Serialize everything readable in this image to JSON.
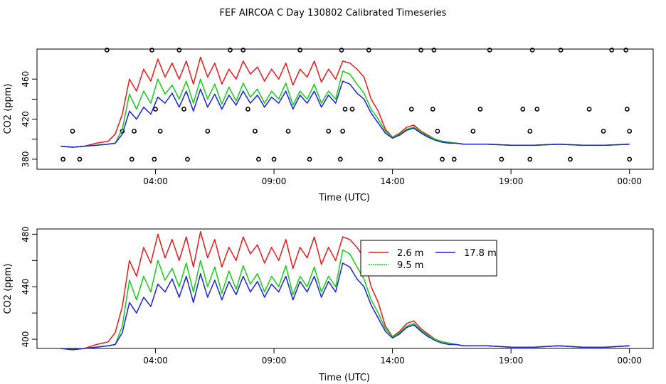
{
  "title": "FEF AIRCOA C  Day 130802  Calibrated Timeseries",
  "colors": {
    "red": "#e41a1c",
    "green": "#19c919",
    "blue": "#1b22d6",
    "circle": "#000000"
  },
  "chart_data": [
    {
      "type": "line",
      "panel": "top",
      "xlabel": "Time (UTC)",
      "ylabel": "CO2 (ppm)",
      "xlim": [
        -1.0,
        25.0
      ],
      "ylim": [
        370,
        490
      ],
      "xticks": [
        4,
        9,
        14,
        19,
        24
      ],
      "xtick_labels": [
        "04:00",
        "09:00",
        "14:00",
        "19:00",
        "00:00"
      ],
      "yticks": [
        380,
        420,
        460
      ],
      "yticks_minor": [
        400,
        440
      ],
      "ytick_labels": [
        "380",
        "420",
        "460"
      ],
      "series_ref": "series",
      "calibration_markers": {
        "x": [
          1.95,
          3.85,
          5.0,
          7.15,
          7.7,
          10.1,
          11.85,
          13.0,
          15.2,
          15.75,
          18.1,
          19.9,
          21.1,
          23.25,
          23.85,
          4.0,
          5.2,
          7.9,
          12.0,
          12.3,
          14.8,
          15.7,
          17.7,
          19.5,
          20.1,
          22.3,
          23.9,
          0.5,
          2.6,
          3.1,
          4.2,
          6.2,
          8.2,
          9.6,
          11.3,
          11.9,
          15.9,
          17.4,
          19.8,
          22.9,
          24.0,
          0.1,
          0.8,
          3.0,
          3.95,
          5.35,
          8.35,
          9.0,
          10.5,
          11.8,
          13.5,
          16.1,
          16.6,
          18.6,
          19.8,
          21.5,
          24.0
        ],
        "y": [
          489,
          489,
          489,
          489,
          489,
          489,
          489,
          489,
          489,
          489,
          489,
          489,
          489,
          489,
          489,
          430,
          430,
          430,
          430,
          430,
          430,
          430,
          430,
          430,
          430,
          430,
          430,
          408,
          408,
          408,
          408,
          408,
          408,
          408,
          408,
          408,
          408,
          408,
          408,
          408,
          408,
          380,
          380,
          380,
          380,
          380,
          380,
          380,
          380,
          380,
          380,
          380,
          380,
          380,
          380,
          380,
          380
        ]
      }
    },
    {
      "type": "line",
      "panel": "bottom",
      "xlabel": "Time (UTC)",
      "ylabel": "CO2 (ppm)",
      "xlim": [
        -1.0,
        25.0
      ],
      "ylim": [
        393,
        484
      ],
      "xticks": [
        4,
        9,
        14,
        19,
        24
      ],
      "xtick_labels": [
        "04:00",
        "09:00",
        "14:00",
        "19:00",
        "00:00"
      ],
      "yticks": [
        400,
        440,
        480
      ],
      "yticks_minor": [
        420,
        460
      ],
      "ytick_labels": [
        "400",
        "440",
        "480"
      ],
      "legend_position": "top-right",
      "legend_entries": [
        "2.6 m",
        "9.5 m",
        "17.8 m"
      ],
      "series_ref": "series"
    }
  ],
  "series": [
    {
      "name": "2.6 m",
      "color_key": "red",
      "x": [
        0.0,
        0.5,
        1.0,
        1.5,
        2.0,
        2.3,
        2.6,
        2.9,
        3.2,
        3.5,
        3.8,
        4.1,
        4.4,
        4.7,
        5.0,
        5.3,
        5.6,
        5.9,
        6.2,
        6.5,
        6.8,
        7.1,
        7.4,
        7.7,
        8.0,
        8.3,
        8.6,
        8.9,
        9.2,
        9.5,
        9.8,
        10.1,
        10.4,
        10.7,
        11.0,
        11.3,
        11.6,
        11.9,
        12.2,
        12.5,
        12.8,
        13.1,
        13.4,
        13.7,
        14.0,
        14.3,
        14.6,
        14.9,
        15.2,
        15.5,
        15.8,
        16.1,
        16.4,
        16.7,
        17.0,
        18.0,
        19.0,
        20.0,
        21.0,
        22.0,
        23.0,
        24.0
      ],
      "y": [
        393,
        392,
        393,
        396,
        398,
        405,
        425,
        460,
        448,
        470,
        458,
        480,
        462,
        476,
        460,
        478,
        455,
        482,
        462,
        476,
        455,
        470,
        460,
        478,
        465,
        472,
        458,
        470,
        460,
        476,
        454,
        470,
        462,
        478,
        457,
        470,
        460,
        478,
        476,
        470,
        462,
        440,
        428,
        410,
        402,
        406,
        412,
        414,
        408,
        404,
        400,
        398,
        397,
        396,
        395,
        395,
        394,
        394,
        395,
        394,
        394,
        395
      ]
    },
    {
      "name": "9.5 m",
      "color_key": "green",
      "x": [
        0.0,
        0.5,
        1.0,
        1.5,
        2.0,
        2.3,
        2.6,
        2.9,
        3.2,
        3.5,
        3.8,
        4.1,
        4.4,
        4.7,
        5.0,
        5.3,
        5.6,
        5.9,
        6.2,
        6.5,
        6.8,
        7.1,
        7.4,
        7.7,
        8.0,
        8.3,
        8.6,
        8.9,
        9.2,
        9.5,
        9.8,
        10.1,
        10.4,
        10.7,
        11.0,
        11.3,
        11.6,
        11.9,
        12.2,
        12.5,
        12.8,
        13.1,
        13.4,
        13.7,
        14.0,
        14.3,
        14.6,
        14.9,
        15.2,
        15.5,
        15.8,
        16.1,
        16.4,
        16.7,
        17.0,
        18.0,
        19.0,
        20.0,
        21.0,
        22.0,
        23.0,
        24.0
      ],
      "y": [
        393,
        392,
        393,
        394,
        395,
        396,
        410,
        445,
        430,
        448,
        436,
        460,
        445,
        454,
        440,
        458,
        436,
        460,
        440,
        455,
        435,
        452,
        438,
        456,
        442,
        450,
        436,
        448,
        440,
        456,
        434,
        448,
        440,
        455,
        436,
        448,
        440,
        468,
        465,
        455,
        446,
        430,
        420,
        408,
        402,
        405,
        410,
        412,
        407,
        403,
        400,
        398,
        397,
        396,
        395,
        395,
        394,
        394,
        395,
        394,
        394,
        395
      ]
    },
    {
      "name": "17.8 m",
      "color_key": "blue",
      "x": [
        0.0,
        0.5,
        1.0,
        1.5,
        2.0,
        2.3,
        2.6,
        2.9,
        3.2,
        3.5,
        3.8,
        4.1,
        4.4,
        4.7,
        5.0,
        5.3,
        5.6,
        5.9,
        6.2,
        6.5,
        6.8,
        7.1,
        7.4,
        7.7,
        8.0,
        8.3,
        8.6,
        8.9,
        9.2,
        9.5,
        9.8,
        10.1,
        10.4,
        10.7,
        11.0,
        11.3,
        11.6,
        11.9,
        12.2,
        12.5,
        12.8,
        13.1,
        13.4,
        13.7,
        14.0,
        14.3,
        14.6,
        14.9,
        15.2,
        15.5,
        15.8,
        16.1,
        16.4,
        16.7,
        17.0,
        18.0,
        19.0,
        20.0,
        21.0,
        22.0,
        23.0,
        24.0
      ],
      "y": [
        393,
        392,
        393,
        394,
        395,
        396,
        405,
        428,
        420,
        432,
        425,
        442,
        436,
        446,
        432,
        448,
        428,
        450,
        432,
        445,
        430,
        444,
        434,
        448,
        436,
        444,
        432,
        442,
        436,
        448,
        430,
        444,
        436,
        448,
        432,
        444,
        436,
        458,
        455,
        446,
        440,
        426,
        416,
        406,
        401,
        404,
        409,
        411,
        406,
        402,
        399,
        397,
        396,
        396,
        395,
        395,
        394,
        394,
        395,
        394,
        394,
        395
      ]
    }
  ]
}
